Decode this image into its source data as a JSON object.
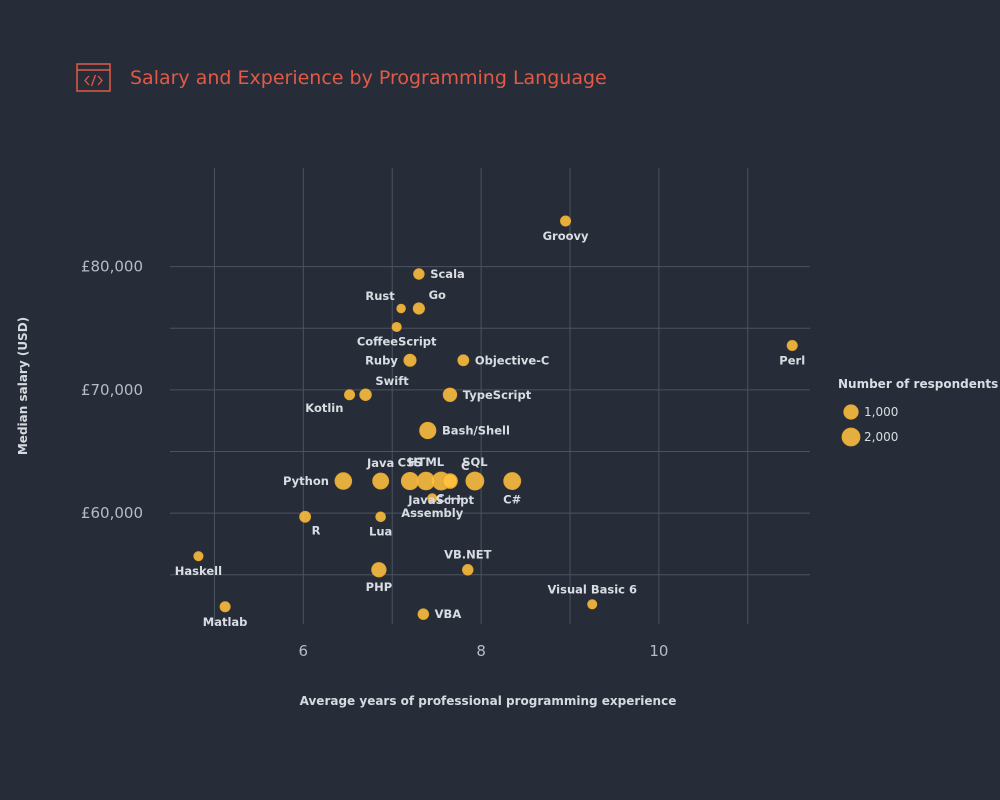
{
  "colors": {
    "background": "#272d38",
    "title": "#e05a47",
    "point_fill": "#ffc240",
    "point_stroke": "#e8a62a",
    "grid": "#4b5261",
    "text": "#d9dde3"
  },
  "header": {
    "icon": "code-icon"
  },
  "chart_data": {
    "type": "scatter",
    "title": "Salary and Experience by Programming Language",
    "xlabel": "Average years of professional programming experience",
    "ylabel": "Median salary (USD)",
    "xlim": [
      4.5,
      11.7
    ],
    "ylim": [
      51000,
      88000
    ],
    "x_ticks": [
      6,
      8,
      10
    ],
    "x_tick_labels": [
      "6",
      "8",
      "10"
    ],
    "y_ticks": [
      60000,
      70000,
      80000
    ],
    "y_tick_labels": [
      "£60,000",
      "£70,000",
      "£80,000"
    ],
    "grid_x": [
      5,
      6,
      7,
      8,
      9,
      10,
      11
    ],
    "grid_y": [
      55000,
      60000,
      65000,
      70000,
      75000,
      80000
    ],
    "grid": true,
    "legend": {
      "title": "Number of respondents",
      "position": "right",
      "entries": [
        {
          "label": "1,000",
          "size": 1000
        },
        {
          "label": "2,000",
          "size": 2000
        }
      ]
    },
    "points": [
      {
        "label": "Groovy",
        "x": 8.95,
        "y": 83700,
        "size": 250,
        "pos": "below"
      },
      {
        "label": "Scala",
        "x": 7.3,
        "y": 79400,
        "size": 300,
        "pos": "right"
      },
      {
        "label": "Rust",
        "x": 7.1,
        "y": 76600,
        "size": 100,
        "pos": "above-left"
      },
      {
        "label": "Go",
        "x": 7.3,
        "y": 76600,
        "size": 400,
        "pos": "above-right"
      },
      {
        "label": "CoffeeScript",
        "x": 7.05,
        "y": 75100,
        "size": 150,
        "pos": "below"
      },
      {
        "label": "Perl",
        "x": 11.5,
        "y": 73600,
        "size": 250,
        "pos": "below"
      },
      {
        "label": "Ruby",
        "x": 7.2,
        "y": 72400,
        "size": 550,
        "pos": "left"
      },
      {
        "label": "Objective-C",
        "x": 7.8,
        "y": 72400,
        "size": 350,
        "pos": "right"
      },
      {
        "label": "Swift",
        "x": 6.7,
        "y": 69600,
        "size": 450,
        "pos": "above-right"
      },
      {
        "label": "Kotlin",
        "x": 6.52,
        "y": 69600,
        "size": 250,
        "pos": "below-left"
      },
      {
        "label": "TypeScript",
        "x": 7.65,
        "y": 69600,
        "size": 800,
        "pos": "right"
      },
      {
        "label": "Bash/Shell",
        "x": 7.4,
        "y": 66700,
        "size": 1500,
        "pos": "right"
      },
      {
        "label": "Python",
        "x": 6.45,
        "y": 62600,
        "size": 1600,
        "pos": "left"
      },
      {
        "label": "Java",
        "x": 6.87,
        "y": 62600,
        "size": 1400,
        "pos": "above"
      },
      {
        "label": "CSS",
        "x": 7.2,
        "y": 62600,
        "size": 1800,
        "pos": "above"
      },
      {
        "label": "HTML",
        "x": 7.38,
        "y": 62600,
        "size": 1900,
        "pos": "above"
      },
      {
        "label": "JavaScript",
        "x": 7.55,
        "y": 62600,
        "size": 2000,
        "pos": "below"
      },
      {
        "label": "C",
        "x": 7.65,
        "y": 62600,
        "size": 900,
        "pos": "above-right"
      },
      {
        "label": "SQL",
        "x": 7.93,
        "y": 62600,
        "size": 2000,
        "pos": "above"
      },
      {
        "label": "C#",
        "x": 8.35,
        "y": 62600,
        "size": 1700,
        "pos": "below"
      },
      {
        "label": "C++",
        "x": 7.65,
        "y": 62600,
        "size": 1100,
        "pos": "below"
      },
      {
        "label": "Assembly",
        "x": 7.45,
        "y": 61200,
        "size": 150,
        "pos": "below"
      },
      {
        "label": "R",
        "x": 6.02,
        "y": 59700,
        "size": 350,
        "pos": "below-right"
      },
      {
        "label": "Lua",
        "x": 6.87,
        "y": 59700,
        "size": 200,
        "pos": "below"
      },
      {
        "label": "Haskell",
        "x": 4.82,
        "y": 56500,
        "size": 150,
        "pos": "below"
      },
      {
        "label": "VB.NET",
        "x": 7.85,
        "y": 55400,
        "size": 300,
        "pos": "above"
      },
      {
        "label": "PHP",
        "x": 6.85,
        "y": 55400,
        "size": 1000,
        "pos": "below"
      },
      {
        "label": "Visual Basic 6",
        "x": 9.25,
        "y": 52600,
        "size": 150,
        "pos": "above"
      },
      {
        "label": "Matlab",
        "x": 5.12,
        "y": 52400,
        "size": 250,
        "pos": "below"
      },
      {
        "label": "VBA",
        "x": 7.35,
        "y": 51800,
        "size": 300,
        "pos": "right"
      }
    ]
  }
}
